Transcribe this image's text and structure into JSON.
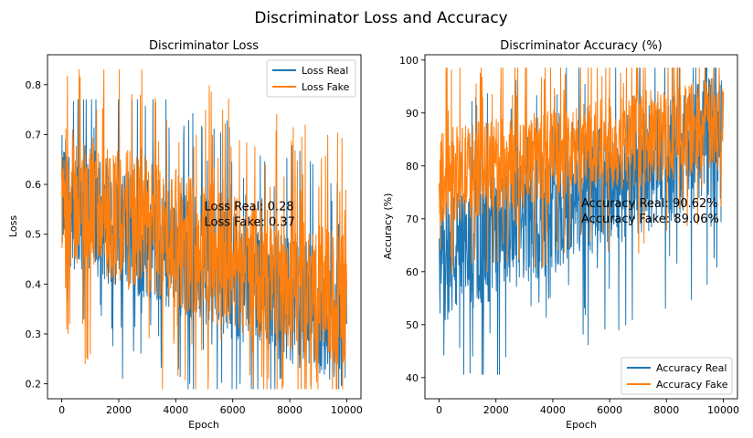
{
  "figure": {
    "title": "Discriminator Loss and Accuracy"
  },
  "colors": {
    "real": "#1f77b4",
    "fake": "#ff7f0e"
  },
  "chart_data": [
    {
      "type": "line",
      "title": "Discriminator Loss",
      "xlabel": "Epoch",
      "ylabel": "Loss",
      "xlim": [
        -500,
        10500
      ],
      "ylim": [
        0.17,
        0.86
      ],
      "xticks": [
        0,
        2000,
        4000,
        6000,
        8000,
        10000
      ],
      "yticks": [
        0.2,
        0.3,
        0.4,
        0.5,
        0.6,
        0.7,
        0.8
      ],
      "grid": false,
      "legend_position": "top-right",
      "annotation": {
        "lines": [
          "Loss Real: 0.28",
          "Loss Fake: 0.37"
        ],
        "x": 5000,
        "y": 0.53
      },
      "series": [
        {
          "name": "Loss Real",
          "points": 10000,
          "start_mean": 0.57,
          "end_mean": 0.32,
          "spread": 0.13,
          "spike_max": 0.77,
          "dip_min": 0.19
        },
        {
          "name": "Loss Fake",
          "points": 10000,
          "start_mean": 0.58,
          "end_mean": 0.36,
          "spread": 0.14,
          "spike_max": 0.83,
          "dip_min": 0.19
        }
      ]
    },
    {
      "type": "line",
      "title": "Discriminator Accuracy (%)",
      "xlabel": "Epoch",
      "ylabel": "Accuracy (%)",
      "xlim": [
        -500,
        10500
      ],
      "ylim": [
        36,
        101
      ],
      "xticks": [
        0,
        2000,
        4000,
        6000,
        8000,
        10000
      ],
      "yticks": [
        40,
        50,
        60,
        70,
        80,
        90,
        100
      ],
      "grid": false,
      "legend_position": "bottom-right",
      "annotation": {
        "lines": [
          "Accuracy Real: 90.62%",
          "Accuracy Fake: 89.06%"
        ],
        "x": 5000,
        "y": 70.5
      },
      "series": [
        {
          "name": "Accuracy Real",
          "points": 10000,
          "start_mean": 62,
          "end_mean": 86,
          "spread": 12,
          "spike_max": 98.5,
          "dip_min": 40.6
        },
        {
          "name": "Accuracy Fake",
          "points": 10000,
          "start_mean": 78,
          "end_mean": 88,
          "spread": 9,
          "spike_max": 98.5,
          "dip_min": 37.5
        }
      ]
    }
  ]
}
